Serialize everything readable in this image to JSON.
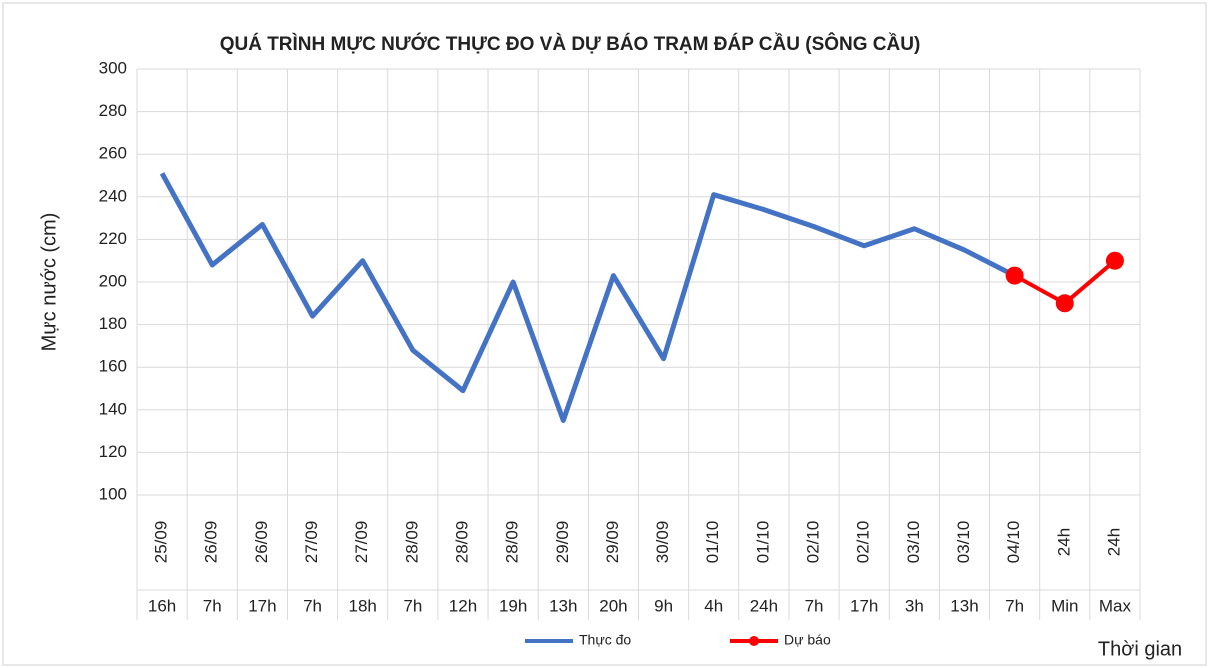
{
  "chart_data": {
    "type": "line",
    "title": "QUÁ TRÌNH MỰC NƯỚC THỰC ĐO VÀ DỰ BÁO TRẠM ĐÁP CẦU (SÔNG CẦU)",
    "y_label": "Mực nước (cm)",
    "x_label": "Thời gian",
    "categories": [
      {
        "date": "25/09",
        "time": "16h"
      },
      {
        "date": "26/09",
        "time": "7h"
      },
      {
        "date": "26/09",
        "time": "17h"
      },
      {
        "date": "27/09",
        "time": "7h"
      },
      {
        "date": "27/09",
        "time": "18h"
      },
      {
        "date": "28/09",
        "time": "7h"
      },
      {
        "date": "28/09",
        "time": "12h"
      },
      {
        "date": "28/09",
        "time": "19h"
      },
      {
        "date": "29/09",
        "time": "13h"
      },
      {
        "date": "29/09",
        "time": "20h"
      },
      {
        "date": "30/09",
        "time": "9h"
      },
      {
        "date": "01/10",
        "time": "4h"
      },
      {
        "date": "01/10",
        "time": "24h"
      },
      {
        "date": "02/10",
        "time": "7h"
      },
      {
        "date": "02/10",
        "time": "17h"
      },
      {
        "date": "03/10",
        "time": "3h"
      },
      {
        "date": "03/10",
        "time": "13h"
      },
      {
        "date": "04/10",
        "time": "7h"
      },
      {
        "date": "24h",
        "time": "Min"
      },
      {
        "date": "24h",
        "time": "Max"
      }
    ],
    "series": [
      {
        "name": "Thực đo",
        "color": "#4472c4",
        "marker": false,
        "values": [
          251,
          208,
          227,
          184,
          210,
          168,
          149,
          200,
          135,
          203,
          164,
          241,
          234,
          226,
          217,
          225,
          215,
          203,
          null,
          null
        ]
      },
      {
        "name": "Dự báo",
        "color": "#ff0000",
        "marker": true,
        "values": [
          null,
          null,
          null,
          null,
          null,
          null,
          null,
          null,
          null,
          null,
          null,
          null,
          null,
          null,
          null,
          null,
          null,
          203,
          190,
          210
        ]
      }
    ],
    "ylim": [
      100,
      300
    ],
    "yticks": [
      100,
      120,
      140,
      160,
      180,
      200,
      220,
      240,
      260,
      280,
      300
    ],
    "grid": true,
    "legend": "bottom"
  }
}
